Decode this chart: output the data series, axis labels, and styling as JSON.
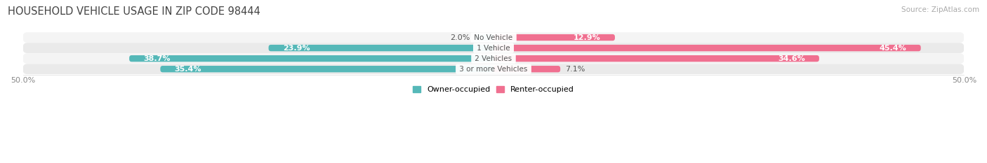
{
  "title": "HOUSEHOLD VEHICLE USAGE IN ZIP CODE 98444",
  "source": "Source: ZipAtlas.com",
  "categories": [
    "No Vehicle",
    "1 Vehicle",
    "2 Vehicles",
    "3 or more Vehicles"
  ],
  "owner_values": [
    2.0,
    23.9,
    38.7,
    35.4
  ],
  "renter_values": [
    12.9,
    45.4,
    34.6,
    7.1
  ],
  "owner_color": "#55b8b8",
  "renter_color": "#f07090",
  "owner_color_light": "#90d4d4",
  "renter_color_light": "#f4a0b8",
  "owner_label": "Owner-occupied",
  "renter_label": "Renter-occupied",
  "xlim": [
    -50,
    50
  ],
  "bar_height": 0.62,
  "title_fontsize": 10.5,
  "source_fontsize": 7.5,
  "label_fontsize": 8,
  "category_fontsize": 7.5,
  "value_inside_threshold": 8,
  "row_bg_light": "#f4f4f4",
  "row_bg_dark": "#eaeaea"
}
